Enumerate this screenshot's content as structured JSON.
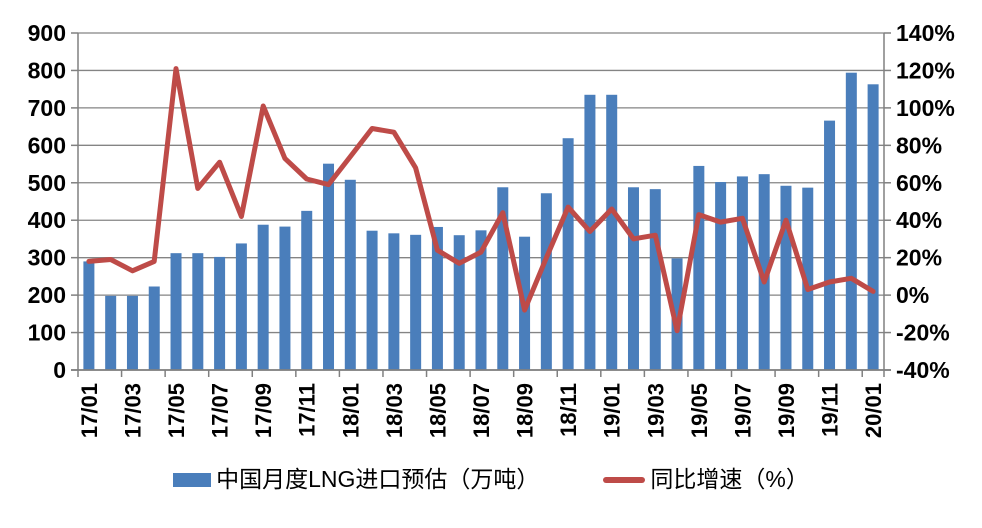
{
  "legend": {
    "bars_label": "中国月度LNG进口预估（万吨）",
    "line_label": "同比增速（%）"
  },
  "colors": {
    "bar": "#4A7EBB",
    "line": "#BE4B48",
    "grid": "#848484",
    "axis": "#808080",
    "text": "#000000",
    "background": "#FFFFFF"
  },
  "chart_data": {
    "type": "combo",
    "categories": [
      "17/01",
      "17/02",
      "17/03",
      "17/04",
      "17/05",
      "17/06",
      "17/07",
      "17/08",
      "17/09",
      "17/10",
      "17/11",
      "17/12",
      "18/01",
      "18/02",
      "18/03",
      "18/04",
      "18/05",
      "18/06",
      "18/07",
      "18/08",
      "18/09",
      "18/10",
      "18/11",
      "18/12",
      "19/01",
      "19/02",
      "19/03",
      "19/04",
      "19/05",
      "19/06",
      "19/07",
      "19/08",
      "19/09",
      "19/10",
      "19/11",
      "19/12",
      "20/01"
    ],
    "series": [
      {
        "name": "中国月度LNG进口预估（万吨）",
        "type": "bar",
        "axis": "left",
        "values": [
          290,
          198,
          198,
          223,
          312,
          312,
          302,
          338,
          388,
          383,
          425,
          551,
          508,
          372,
          365,
          361,
          382,
          360,
          373,
          488,
          356,
          472,
          619,
          735,
          735,
          488,
          483,
          298,
          545,
          502,
          517,
          523,
          492,
          487,
          666,
          794,
          763
        ]
      },
      {
        "name": "同比增速（%）",
        "type": "line",
        "axis": "right",
        "values": [
          18,
          19,
          13,
          18,
          121,
          57,
          71,
          42,
          101,
          73,
          62,
          59,
          74,
          89,
          87,
          68,
          24,
          17,
          23,
          44,
          -8,
          20,
          47,
          34,
          46,
          30,
          32,
          -19,
          43,
          39,
          41,
          7,
          40,
          3,
          7,
          9,
          2
        ]
      }
    ],
    "left_axis": {
      "min": 0,
      "max": 900,
      "step": 100,
      "tick_labels": [
        "0",
        "100",
        "200",
        "300",
        "400",
        "500",
        "600",
        "700",
        "800",
        "900"
      ]
    },
    "right_axis": {
      "min": -40,
      "max": 140,
      "step": 20,
      "tick_labels": [
        "-40%",
        "-20%",
        "0%",
        "20%",
        "40%",
        "60%",
        "80%",
        "100%",
        "120%",
        "140%"
      ]
    },
    "x_label_every": 2,
    "visible_x_labels": [
      "17/01",
      "17/03",
      "17/05",
      "17/07",
      "17/09",
      "17/11",
      "18/01",
      "18/03",
      "18/05",
      "18/07",
      "18/09",
      "18/11",
      "19/01",
      "19/03",
      "19/05",
      "19/07",
      "19/09",
      "19/11",
      "20/01"
    ],
    "grid": true,
    "legend_position": "bottom"
  }
}
